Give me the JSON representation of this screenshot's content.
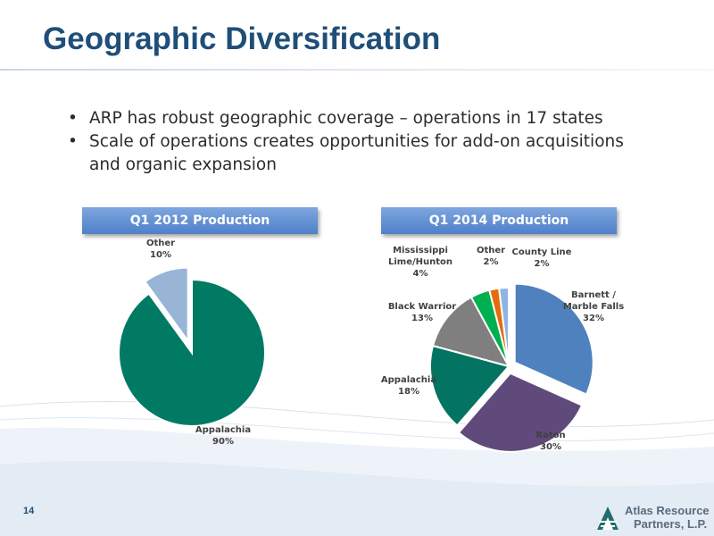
{
  "slide": {
    "title": "Geographic Diversification",
    "page_number": "14"
  },
  "bullets": [
    "ARP has robust geographic coverage – operations in 17 states",
    "Scale of operations creates opportunities for add-on acquisitions and organic expansion"
  ],
  "charts": {
    "left": {
      "header": "Q1 2012 Production"
    },
    "right": {
      "header": "Q1 2014 Production"
    }
  },
  "chart_data": [
    {
      "type": "pie",
      "title": "Q1 2012 Production",
      "slices": [
        {
          "label": "Appalachia",
          "value": 90,
          "display": "90%",
          "color": "#007a63"
        },
        {
          "label": "Other",
          "value": 10,
          "display": "10%",
          "color": "#98b4d6"
        }
      ]
    },
    {
      "type": "pie",
      "title": "Q1 2014 Production",
      "slices": [
        {
          "label": "Barnett / Marble Falls",
          "value": 32,
          "display": "32%",
          "color": "#4e81bd"
        },
        {
          "label": "Raton",
          "value": 30,
          "display": "30%",
          "color": "#604a7b"
        },
        {
          "label": "Appalachia",
          "value": 18,
          "display": "18%",
          "color": "#037462"
        },
        {
          "label": "Black Warrior",
          "value": 13,
          "display": "13%",
          "color": "#7f7f7f"
        },
        {
          "label": "Mississippi Lime/Hunton",
          "value": 4,
          "display": "4%",
          "color": "#00b050"
        },
        {
          "label": "Other",
          "value": 2,
          "display": "2%",
          "color": "#e46c0a"
        },
        {
          "label": "County Line",
          "value": 2,
          "display": "2%",
          "color": "#8eb4e3"
        }
      ]
    }
  ],
  "logo": {
    "line1": "Atlas Resource",
    "line2": "Partners, L.P."
  },
  "colors": {
    "title": "#1f4e79",
    "header_bg": "#5b8bd0"
  }
}
